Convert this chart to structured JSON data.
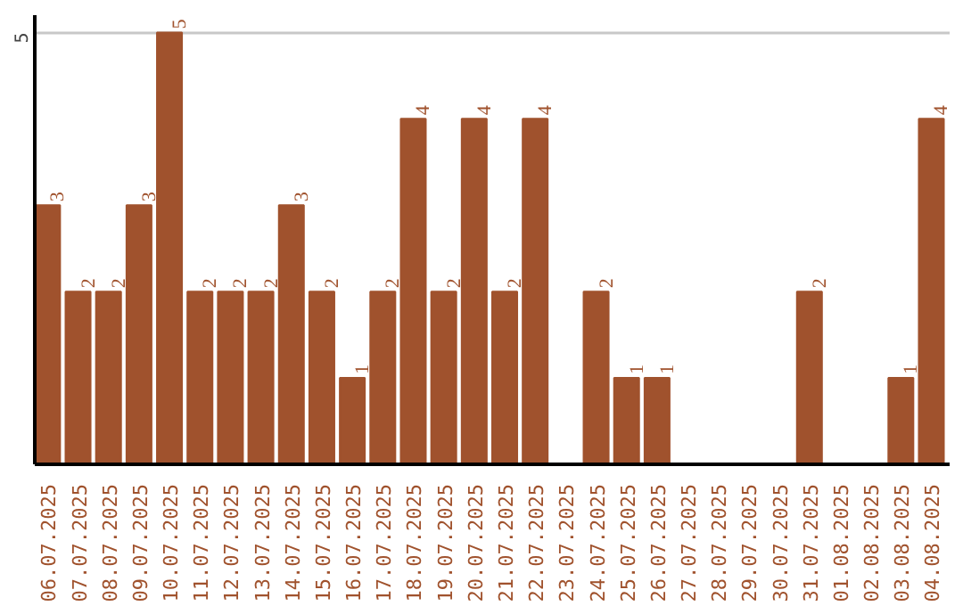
{
  "chart_data": {
    "type": "bar",
    "categories": [
      "06.07.2025",
      "07.07.2025",
      "08.07.2025",
      "09.07.2025",
      "10.07.2025",
      "11.07.2025",
      "12.07.2025",
      "13.07.2025",
      "14.07.2025",
      "15.07.2025",
      "16.07.2025",
      "17.07.2025",
      "18.07.2025",
      "19.07.2025",
      "20.07.2025",
      "21.07.2025",
      "22.07.2025",
      "23.07.2025",
      "24.07.2025",
      "25.07.2025",
      "26.07.2025",
      "27.07.2025",
      "28.07.2025",
      "29.07.2025",
      "30.07.2025",
      "31.07.2025",
      "01.08.2025",
      "02.08.2025",
      "03.08.2025",
      "04.08.2025"
    ],
    "values": [
      3,
      2,
      2,
      3,
      5,
      2,
      2,
      2,
      3,
      2,
      1,
      2,
      4,
      2,
      4,
      2,
      4,
      0,
      2,
      1,
      1,
      0,
      0,
      0,
      0,
      2,
      0,
      0,
      1,
      4
    ],
    "value_labels": [
      "3",
      "2",
      "2",
      "3",
      "5",
      "2",
      "2",
      "2",
      "3",
      "2",
      "1",
      "2",
      "4",
      "2",
      "4",
      "2",
      "4",
      null,
      "2",
      "1",
      "1",
      null,
      null,
      null,
      null,
      "2",
      null,
      null,
      "1",
      "4"
    ],
    "color": "#a0522d",
    "ylim": [
      0,
      5.2
    ],
    "yticks": [
      5
    ],
    "grid": "y"
  }
}
